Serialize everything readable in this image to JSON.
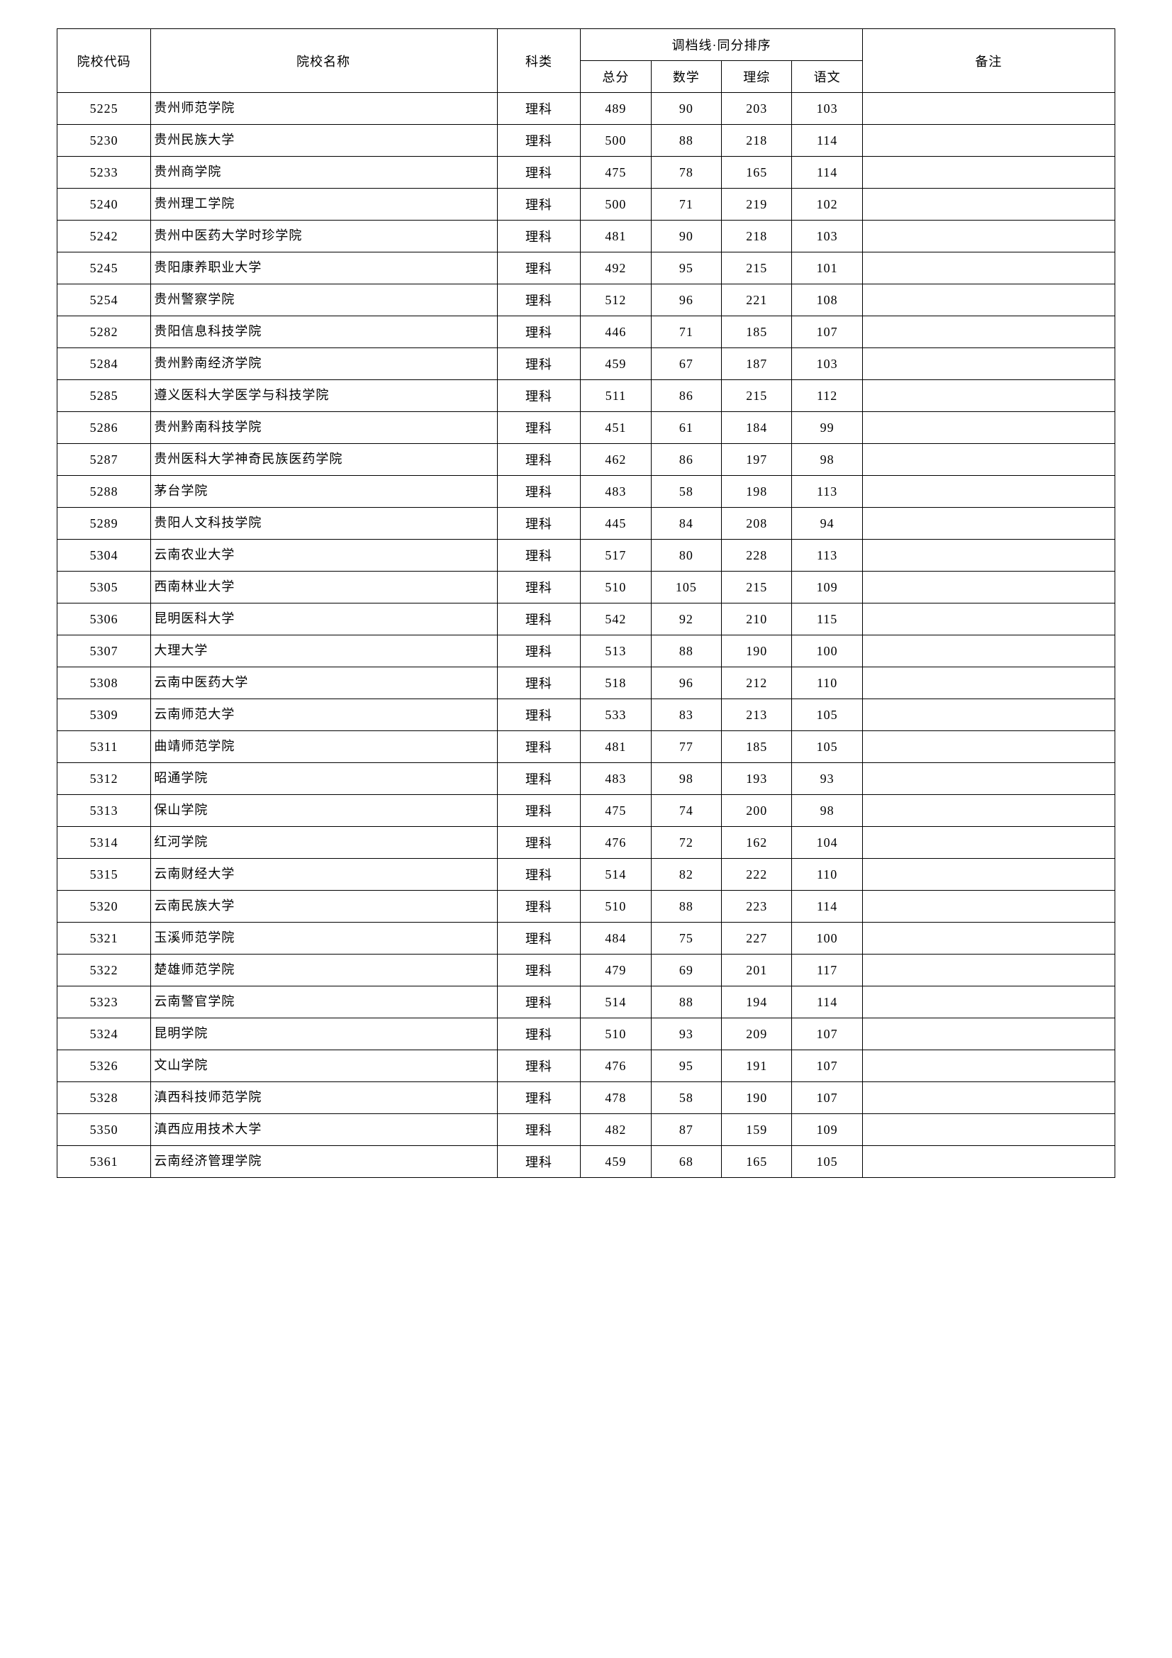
{
  "headers": {
    "code": "院校代码",
    "name": "院校名称",
    "type": "科类",
    "scoregroup": "调档线·同分排序",
    "total": "总分",
    "math": "数学",
    "licong": "理综",
    "chinese": "语文",
    "note": "备注"
  },
  "rows": [
    {
      "code": "5225",
      "name": "贵州师范学院",
      "type": "理科",
      "total": "489",
      "math": "90",
      "licong": "203",
      "chinese": "103",
      "note": ""
    },
    {
      "code": "5230",
      "name": "贵州民族大学",
      "type": "理科",
      "total": "500",
      "math": "88",
      "licong": "218",
      "chinese": "114",
      "note": ""
    },
    {
      "code": "5233",
      "name": "贵州商学院",
      "type": "理科",
      "total": "475",
      "math": "78",
      "licong": "165",
      "chinese": "114",
      "note": ""
    },
    {
      "code": "5240",
      "name": "贵州理工学院",
      "type": "理科",
      "total": "500",
      "math": "71",
      "licong": "219",
      "chinese": "102",
      "note": ""
    },
    {
      "code": "5242",
      "name": "贵州中医药大学时珍学院",
      "type": "理科",
      "total": "481",
      "math": "90",
      "licong": "218",
      "chinese": "103",
      "note": ""
    },
    {
      "code": "5245",
      "name": "贵阳康养职业大学",
      "type": "理科",
      "total": "492",
      "math": "95",
      "licong": "215",
      "chinese": "101",
      "note": ""
    },
    {
      "code": "5254",
      "name": "贵州警察学院",
      "type": "理科",
      "total": "512",
      "math": "96",
      "licong": "221",
      "chinese": "108",
      "note": ""
    },
    {
      "code": "5282",
      "name": "贵阳信息科技学院",
      "type": "理科",
      "total": "446",
      "math": "71",
      "licong": "185",
      "chinese": "107",
      "note": ""
    },
    {
      "code": "5284",
      "name": "贵州黔南经济学院",
      "type": "理科",
      "total": "459",
      "math": "67",
      "licong": "187",
      "chinese": "103",
      "note": ""
    },
    {
      "code": "5285",
      "name": "遵义医科大学医学与科技学院",
      "type": "理科",
      "total": "511",
      "math": "86",
      "licong": "215",
      "chinese": "112",
      "note": ""
    },
    {
      "code": "5286",
      "name": "贵州黔南科技学院",
      "type": "理科",
      "total": "451",
      "math": "61",
      "licong": "184",
      "chinese": "99",
      "note": ""
    },
    {
      "code": "5287",
      "name": "贵州医科大学神奇民族医药学院",
      "type": "理科",
      "total": "462",
      "math": "86",
      "licong": "197",
      "chinese": "98",
      "note": ""
    },
    {
      "code": "5288",
      "name": "茅台学院",
      "type": "理科",
      "total": "483",
      "math": "58",
      "licong": "198",
      "chinese": "113",
      "note": ""
    },
    {
      "code": "5289",
      "name": "贵阳人文科技学院",
      "type": "理科",
      "total": "445",
      "math": "84",
      "licong": "208",
      "chinese": "94",
      "note": ""
    },
    {
      "code": "5304",
      "name": "云南农业大学",
      "type": "理科",
      "total": "517",
      "math": "80",
      "licong": "228",
      "chinese": "113",
      "note": ""
    },
    {
      "code": "5305",
      "name": "西南林业大学",
      "type": "理科",
      "total": "510",
      "math": "105",
      "licong": "215",
      "chinese": "109",
      "note": ""
    },
    {
      "code": "5306",
      "name": "昆明医科大学",
      "type": "理科",
      "total": "542",
      "math": "92",
      "licong": "210",
      "chinese": "115",
      "note": ""
    },
    {
      "code": "5307",
      "name": "大理大学",
      "type": "理科",
      "total": "513",
      "math": "88",
      "licong": "190",
      "chinese": "100",
      "note": ""
    },
    {
      "code": "5308",
      "name": "云南中医药大学",
      "type": "理科",
      "total": "518",
      "math": "96",
      "licong": "212",
      "chinese": "110",
      "note": ""
    },
    {
      "code": "5309",
      "name": "云南师范大学",
      "type": "理科",
      "total": "533",
      "math": "83",
      "licong": "213",
      "chinese": "105",
      "note": ""
    },
    {
      "code": "5311",
      "name": "曲靖师范学院",
      "type": "理科",
      "total": "481",
      "math": "77",
      "licong": "185",
      "chinese": "105",
      "note": ""
    },
    {
      "code": "5312",
      "name": "昭通学院",
      "type": "理科",
      "total": "483",
      "math": "98",
      "licong": "193",
      "chinese": "93",
      "note": ""
    },
    {
      "code": "5313",
      "name": "保山学院",
      "type": "理科",
      "total": "475",
      "math": "74",
      "licong": "200",
      "chinese": "98",
      "note": ""
    },
    {
      "code": "5314",
      "name": "红河学院",
      "type": "理科",
      "total": "476",
      "math": "72",
      "licong": "162",
      "chinese": "104",
      "note": ""
    },
    {
      "code": "5315",
      "name": "云南财经大学",
      "type": "理科",
      "total": "514",
      "math": "82",
      "licong": "222",
      "chinese": "110",
      "note": ""
    },
    {
      "code": "5320",
      "name": "云南民族大学",
      "type": "理科",
      "total": "510",
      "math": "88",
      "licong": "223",
      "chinese": "114",
      "note": ""
    },
    {
      "code": "5321",
      "name": "玉溪师范学院",
      "type": "理科",
      "total": "484",
      "math": "75",
      "licong": "227",
      "chinese": "100",
      "note": ""
    },
    {
      "code": "5322",
      "name": "楚雄师范学院",
      "type": "理科",
      "total": "479",
      "math": "69",
      "licong": "201",
      "chinese": "117",
      "note": ""
    },
    {
      "code": "5323",
      "name": "云南警官学院",
      "type": "理科",
      "total": "514",
      "math": "88",
      "licong": "194",
      "chinese": "114",
      "note": ""
    },
    {
      "code": "5324",
      "name": "昆明学院",
      "type": "理科",
      "total": "510",
      "math": "93",
      "licong": "209",
      "chinese": "107",
      "note": ""
    },
    {
      "code": "5326",
      "name": "文山学院",
      "type": "理科",
      "total": "476",
      "math": "95",
      "licong": "191",
      "chinese": "107",
      "note": ""
    },
    {
      "code": "5328",
      "name": "滇西科技师范学院",
      "type": "理科",
      "total": "478",
      "math": "58",
      "licong": "190",
      "chinese": "107",
      "note": ""
    },
    {
      "code": "5350",
      "name": "滇西应用技术大学",
      "type": "理科",
      "total": "482",
      "math": "87",
      "licong": "159",
      "chinese": "109",
      "note": ""
    },
    {
      "code": "5361",
      "name": "云南经济管理学院",
      "type": "理科",
      "total": "459",
      "math": "68",
      "licong": "165",
      "chinese": "105",
      "note": ""
    }
  ]
}
